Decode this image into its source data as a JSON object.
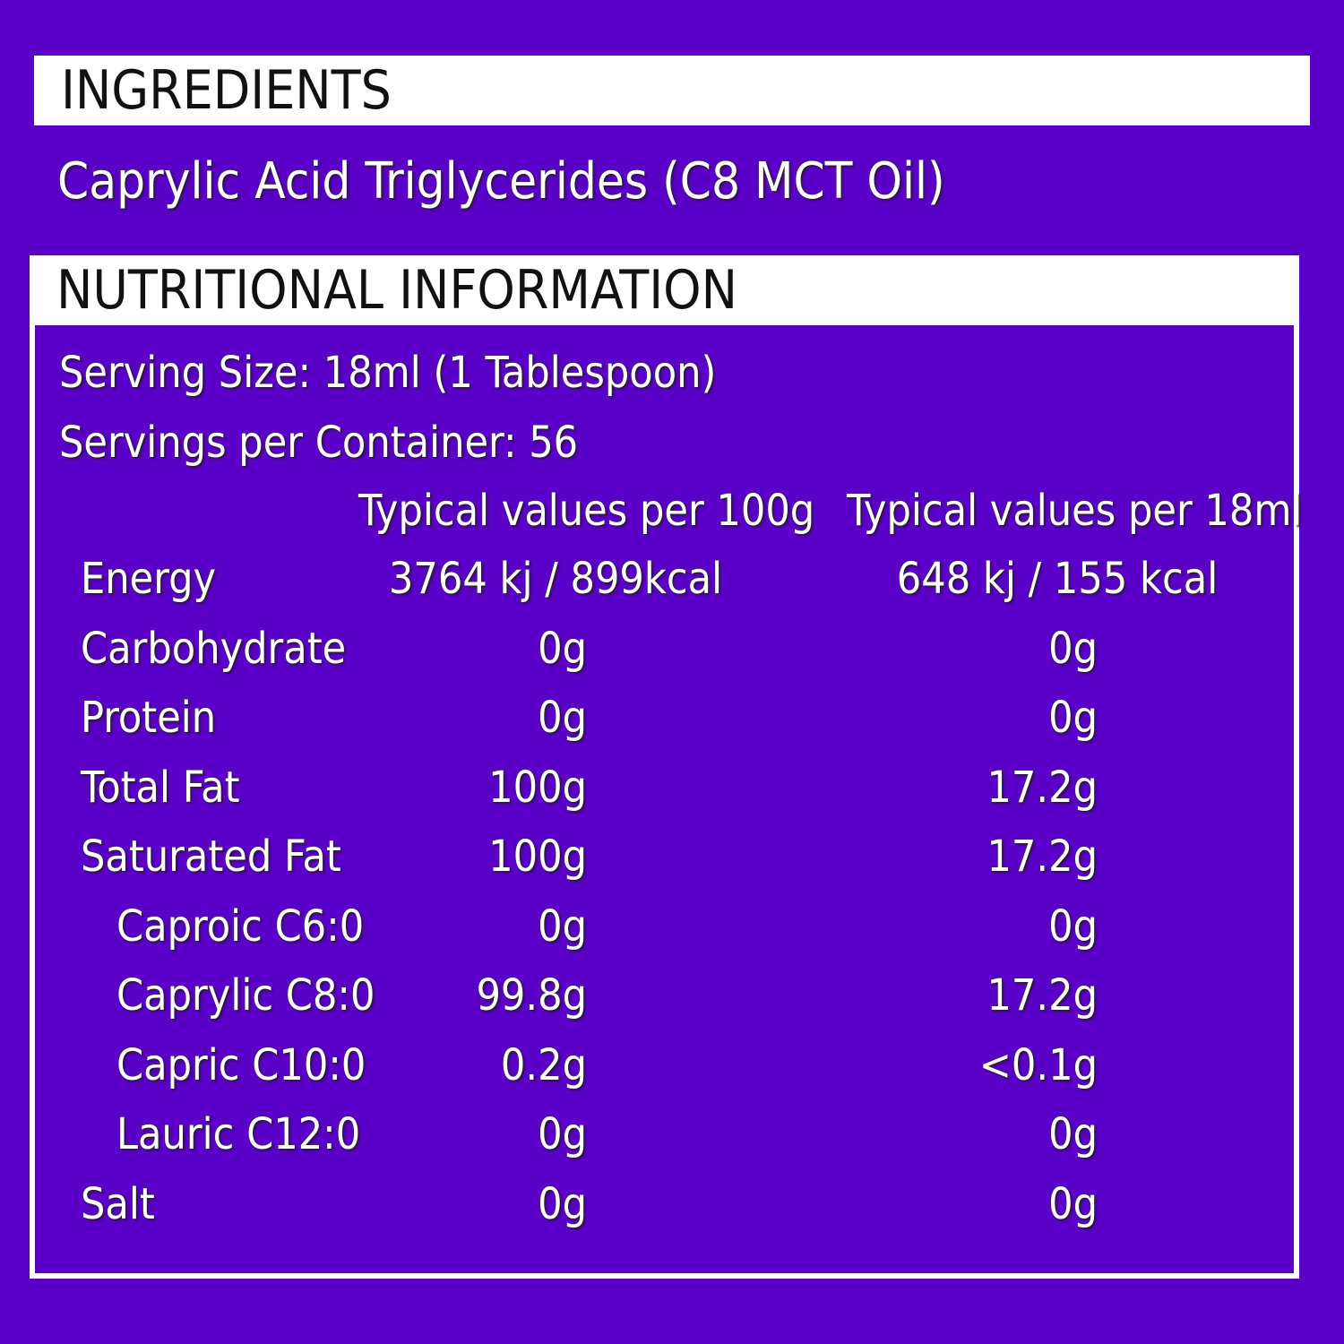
{
  "ingredients": {
    "title": "INGREDIENTS",
    "text": "Caprylic Acid Triglycerides (C8 MCT Oil)"
  },
  "nutrition": {
    "title": "NUTRITIONAL INFORMATION",
    "serving_size": "Serving Size: 18ml (1 Tablespoon)",
    "servings": "Servings per Container: 56",
    "columns": [
      "Typical values per 100g",
      "Typical values per 18ml"
    ],
    "rows": [
      [
        "Energy",
        "3764 kj / 899kcal",
        "648 kj / 155 kcal"
      ],
      [
        "Carbohydrate",
        "0g",
        "0g"
      ],
      [
        "Protein",
        "0g",
        "0g"
      ],
      [
        "Total Fat",
        "100g",
        "17.2g"
      ],
      [
        "Saturated Fat",
        "100g",
        "17.2g"
      ],
      [
        "Caproic C6:0",
        "0g",
        "0g"
      ],
      [
        "Caprylic C8:0",
        "99.8g",
        "17.2g"
      ],
      [
        "Capric C10:0",
        "0.2g",
        "<0.1g"
      ],
      [
        "Lauric C12:0",
        "0g",
        "0g"
      ],
      [
        "Salt",
        "0g",
        "0g"
      ]
    ]
  }
}
